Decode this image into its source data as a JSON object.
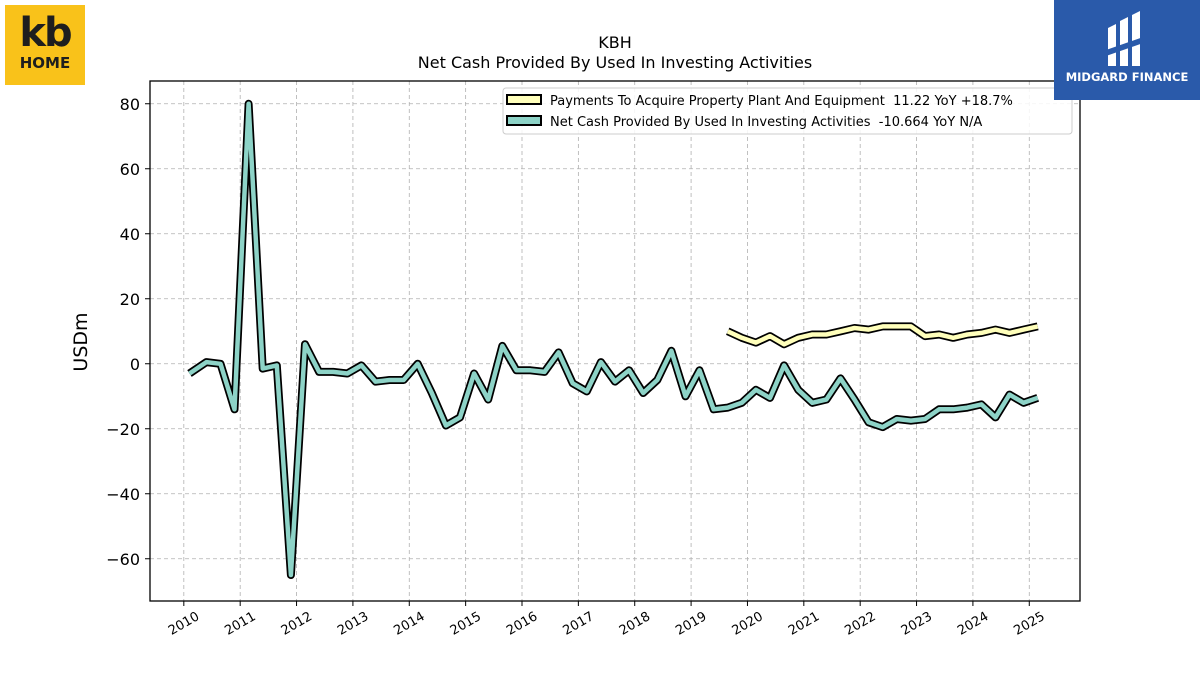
{
  "logos": {
    "left": {
      "line1": "kb",
      "line2": "HOME",
      "bg": "#f9c21a"
    },
    "right": {
      "text": "MIDGARD FINANCE",
      "bg": "#2a5aaa"
    }
  },
  "chart_data": {
    "type": "line",
    "title": "KBH",
    "subtitle": "Net Cash Provided By Used In Investing Activities",
    "xlabel": "",
    "ylabel": "USDm",
    "xlim": [
      2009.4,
      2025.9
    ],
    "ylim": [
      -73,
      87
    ],
    "xticks": [
      2010,
      2011,
      2012,
      2013,
      2014,
      2015,
      2016,
      2017,
      2018,
      2019,
      2020,
      2021,
      2022,
      2023,
      2024,
      2025
    ],
    "yticks": [
      80,
      60,
      40,
      20,
      0,
      -20,
      -40,
      -60
    ],
    "ytick_labels": [
      "80",
      "60",
      "40",
      "20",
      "0",
      "−20",
      "−40",
      "−60"
    ],
    "grid": true,
    "legend_position": "top-right",
    "series": [
      {
        "name": "Payments To Acquire Property Plant And Equipment  11.22 YoY +18.7%",
        "color": "#ffffbb",
        "x": [
          2019.65,
          2019.9,
          2020.15,
          2020.4,
          2020.65,
          2020.9,
          2021.15,
          2021.4,
          2021.65,
          2021.9,
          2022.15,
          2022.4,
          2022.65,
          2022.9,
          2023.15,
          2023.4,
          2023.65,
          2023.9,
          2024.15,
          2024.4,
          2024.65,
          2024.9,
          2025.15
        ],
        "y": [
          10,
          8,
          6.5,
          8.5,
          6,
          8,
          9,
          9,
          10,
          11,
          10.5,
          11.5,
          11.5,
          11.5,
          8.5,
          9,
          8,
          9,
          9.5,
          10.5,
          9.5,
          10.5,
          11.5
        ]
      },
      {
        "name": "Net Cash Provided By Used In Investing Activities  -10.664 YoY N/A",
        "color": "#8dd3c7",
        "x": [
          2010.1,
          2010.4,
          2010.65,
          2010.9,
          2011.15,
          2011.4,
          2011.65,
          2011.9,
          2012.15,
          2012.4,
          2012.65,
          2012.9,
          2013.15,
          2013.4,
          2013.65,
          2013.9,
          2014.15,
          2014.4,
          2014.65,
          2014.9,
          2015.15,
          2015.4,
          2015.65,
          2015.9,
          2016.15,
          2016.4,
          2016.65,
          2016.9,
          2017.15,
          2017.4,
          2017.65,
          2017.9,
          2018.15,
          2018.4,
          2018.65,
          2018.9,
          2019.15,
          2019.4,
          2019.65,
          2019.9,
          2020.15,
          2020.4,
          2020.65,
          2020.9,
          2021.15,
          2021.4,
          2021.65,
          2021.9,
          2022.15,
          2022.4,
          2022.65,
          2022.9,
          2023.15,
          2023.4,
          2023.65,
          2023.9,
          2024.15,
          2024.4,
          2024.65,
          2024.9,
          2025.15
        ],
        "y": [
          -3,
          0.5,
          0,
          -14,
          80,
          -1.5,
          -0.5,
          -65,
          6,
          -2.5,
          -2.5,
          -3,
          -0.5,
          -5.5,
          -5,
          -5,
          0,
          -9,
          -19,
          -16.5,
          -3,
          -11,
          5.5,
          -2,
          -2,
          -2.5,
          3.5,
          -6,
          -8.5,
          0.5,
          -5.5,
          -2,
          -9,
          -5,
          4,
          -10,
          -2,
          -14,
          -13.5,
          -12,
          -8,
          -10.5,
          -0.5,
          -8,
          -12,
          -11,
          -4.5,
          -11,
          -18,
          -19.5,
          -17,
          -17.5,
          -17,
          -14,
          -14,
          -13.5,
          -12.5,
          -16.5,
          -9.5,
          -12,
          -10.5
        ]
      }
    ]
  }
}
